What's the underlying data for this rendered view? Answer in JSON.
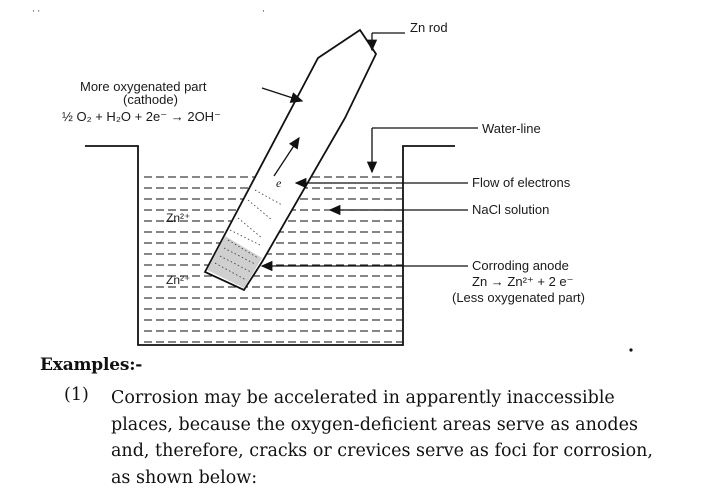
{
  "diagram": {
    "zn_rod_label": "Zn rod",
    "cathode_label_line1": "More oxygenated part",
    "cathode_label_line2": "(cathode)",
    "cathode_reaction": "½ O₂ + H₂O + 2e⁻ → 2OH⁻",
    "water_line_label": "Water-line",
    "flow_label": "Flow of electrons",
    "nacl_label": "NaCl solution",
    "anode_label": "Corroding anode",
    "anode_reaction": "Zn → Zn²⁺ + 2 e⁻",
    "anode_note": "(Less oxygenated part)",
    "electron_symbol": "e",
    "ion_label_upper": "Zn²⁺",
    "ion_label_lower": "Zn²⁺"
  },
  "text": {
    "heading": "Examples:-",
    "item_number": "(1)",
    "item_lines": [
      "Corrosion may be accelerated in apparently inaccessible",
      "places, because the oxygen-deficient areas serve as anodes",
      "and, therefore, cracks or crevices serve as foci for corrosion,",
      "as shown below:"
    ]
  }
}
